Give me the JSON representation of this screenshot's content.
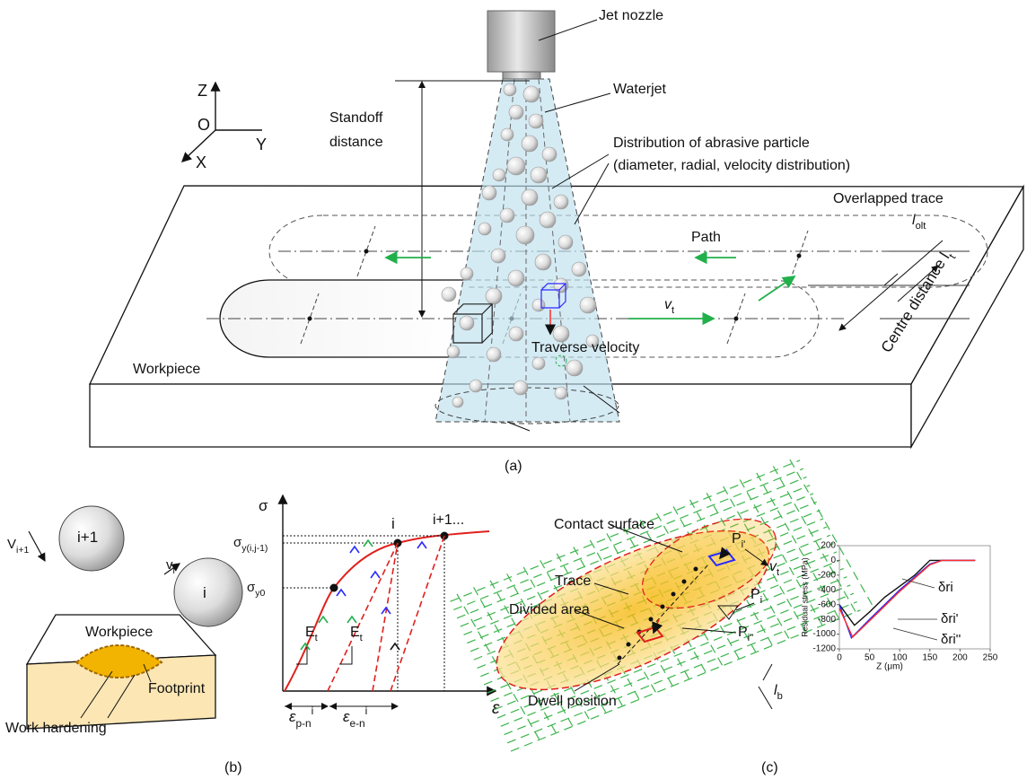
{
  "panel_a": {
    "caption": "(a)",
    "axes": {
      "z": "Z",
      "o": "O",
      "y": "Y",
      "x": "X"
    },
    "labels": {
      "jet_nozzle": "Jet nozzle",
      "waterjet": "Waterjet",
      "distribution": "Distribution of abrasive particle",
      "distribution_detail": "(diameter, radial, velocity distribution)",
      "standoff_1": "Standoff",
      "standoff_2": "distance",
      "overlapped_trace": "Overlapped trace",
      "l_olt": "l",
      "l_olt_sub": "olt",
      "path": "Path",
      "v_t": "v",
      "v_t_sub": "t",
      "centre_distance": "Centre distance l",
      "centre_distance_sub": "t",
      "workpiece": "Workpiece",
      "traverse_velocity": "Traverse velocity"
    }
  },
  "panel_b": {
    "caption": "(b)",
    "labels": {
      "v_next": "V",
      "v_next_sub": "i+1",
      "particle_next": "i+1",
      "v_i": "v",
      "v_i_sub": "i",
      "particle_i": "i",
      "workpiece": "Workpiece",
      "footprint": "Footprint",
      "work_hardening": "Work hardening",
      "sigma": "σ",
      "sigma_y": "σ",
      "sigma_y_sub": "y(i,j-1)",
      "sigma_y0": "σ",
      "sigma_y0_sub": "y0",
      "point_i": "i",
      "point_next": "i+1...",
      "e_t_1": "E",
      "e_t_1_sub": "t",
      "e_t_2": "E",
      "e_t_2_sub": "t",
      "eps_p": "ε",
      "eps_p_sub": "p-n",
      "eps_p_sup": "i",
      "eps_e": "ε",
      "eps_e_sub": "e-n",
      "eps_e_sup": "i",
      "epsilon": "ε"
    }
  },
  "panel_c": {
    "caption": "(c)",
    "labels": {
      "contact_surface": "Contact surface",
      "trace": "Trace",
      "divided_area": "Divided area",
      "dwell_position": "Dwell position",
      "p_i1": "P",
      "p_i1_sub": "i'",
      "p_i": "P",
      "p_i_sub": "i",
      "p_i2": "P",
      "p_i2_sub": "i''",
      "v_t": "v",
      "v_t_sub": "t",
      "l_b": "l",
      "l_b_sub": "b"
    },
    "inset_chart": {
      "type": "line",
      "x_label": "Z (μm)",
      "y_label": "Residual stress (MPa)",
      "xlim": [
        0,
        250
      ],
      "ylim": [
        -1200,
        200
      ],
      "xticks": [
        0,
        50,
        100,
        150,
        200,
        250
      ],
      "yticks": [
        -1200,
        -1000,
        -800,
        -600,
        -400,
        -200,
        0,
        200
      ],
      "series": [
        {
          "name": "δri",
          "color": "#111111",
          "x": [
            0,
            25,
            50,
            75,
            100,
            125,
            150,
            225
          ],
          "values": [
            -600,
            -880,
            -700,
            -500,
            -350,
            -200,
            0,
            0
          ]
        },
        {
          "name": "δri'",
          "color": "#2a2aff",
          "x": [
            0,
            20,
            50,
            75,
            100,
            150,
            170,
            225
          ],
          "values": [
            -600,
            -1050,
            -800,
            -600,
            -400,
            -50,
            0,
            0
          ]
        },
        {
          "name": "δri''",
          "color": "#ff2a2a",
          "x": [
            0,
            22,
            50,
            75,
            100,
            150,
            170,
            225
          ],
          "values": [
            -650,
            -1040,
            -820,
            -620,
            -420,
            -60,
            0,
            0
          ]
        }
      ]
    }
  }
}
